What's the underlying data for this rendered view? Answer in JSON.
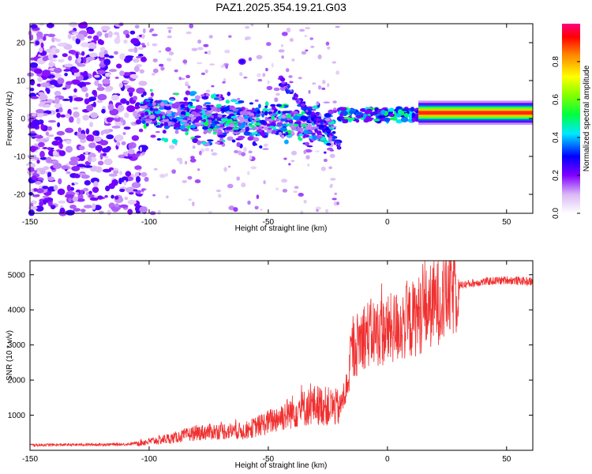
{
  "chart_data": [
    {
      "type": "heatmap",
      "title": "PAZ1.2025.354.19.21.G03",
      "xlabel": "Height of straight line (km)",
      "ylabel": "Frequency (Hz)",
      "xlim": [
        -150,
        61
      ],
      "ylim": [
        -25,
        25
      ],
      "xticks": [
        -150,
        -100,
        -50,
        0,
        50
      ],
      "yticks": [
        -20,
        -10,
        0,
        10,
        20
      ],
      "colorbar": {
        "label": "Normalized spectral amplitude",
        "range": [
          0,
          1
        ],
        "ticks": [
          0.0,
          0.2,
          0.4,
          0.6,
          0.8
        ],
        "tick_labels": [
          "0.0",
          "0.2",
          "0.4",
          "0.6",
          "0.8"
        ]
      },
      "features": {
        "noise_region_x": [
          -150,
          -105
        ],
        "band_center_x": [
          -103,
          -22
        ],
        "band_center_y": [
          1.5,
          -2.5
        ],
        "steady_line_x": [
          13,
          61
        ],
        "steady_line_freq": 1.5
      }
    },
    {
      "type": "line",
      "xlabel": "Height of straight line (km)",
      "ylabel": "SNR (10 * v/v)",
      "xlim": [
        -150,
        61
      ],
      "ylim": [
        0,
        5400
      ],
      "xticks": [
        -150,
        -100,
        -50,
        0,
        50
      ],
      "yticks": [
        1000,
        2000,
        3000,
        4000,
        5000
      ],
      "series": [
        {
          "name": "SNR",
          "color": "#f03030",
          "trend_x": [
            -150,
            -110,
            -100,
            -90,
            -80,
            -70,
            -60,
            -50,
            -40,
            -30,
            -20,
            -17,
            -15,
            -10,
            0,
            10,
            20,
            30,
            40,
            50,
            61
          ],
          "trend_y": [
            150,
            170,
            250,
            350,
            500,
            550,
            550,
            800,
            1100,
            1300,
            1200,
            1800,
            2800,
            3300,
            3400,
            3700,
            4200,
            4700,
            4800,
            4850,
            4800
          ]
        }
      ]
    }
  ]
}
